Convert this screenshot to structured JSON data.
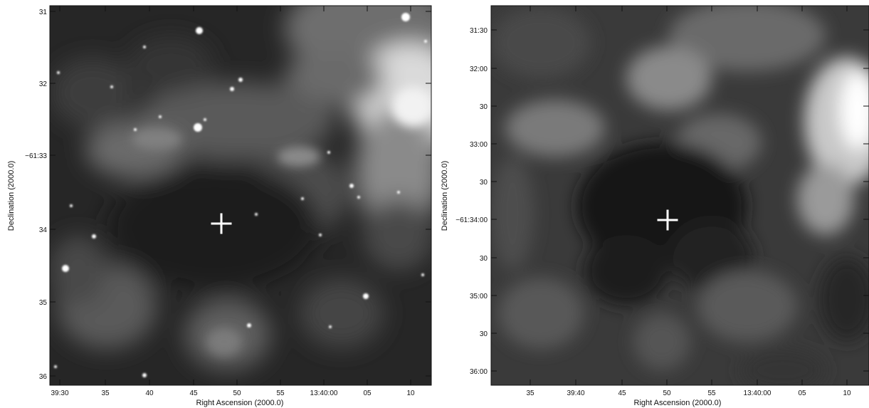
{
  "panels": [
    {
      "id": "left",
      "xlabel": "Right Ascension (2000.0)",
      "ylabel": "Declination (2000.0)",
      "x_ticks": [
        "39:30",
        "35",
        "40",
        "45",
        "50",
        "55",
        "13:40:00",
        "05",
        "10"
      ],
      "y_ticks": [
        "31",
        "32",
        "−61:33",
        "34",
        "35",
        "36"
      ],
      "marker": "plus-marker"
    },
    {
      "id": "right",
      "xlabel": "Right Ascension (2000.0)",
      "ylabel": "Declination (2000.0)",
      "x_ticks": [
        "35",
        "39:40",
        "45",
        "50",
        "55",
        "13:40:00",
        "05",
        "10"
      ],
      "y_ticks": [
        "31:30",
        "32:00",
        "30",
        "33:00",
        "30",
        "−61:34:00",
        "30",
        "35:00",
        "30",
        "36:00"
      ],
      "marker": "plus-marker"
    }
  ],
  "colors": {
    "frame": "#111111",
    "marker": "#ffffff",
    "background": "#ffffff"
  }
}
